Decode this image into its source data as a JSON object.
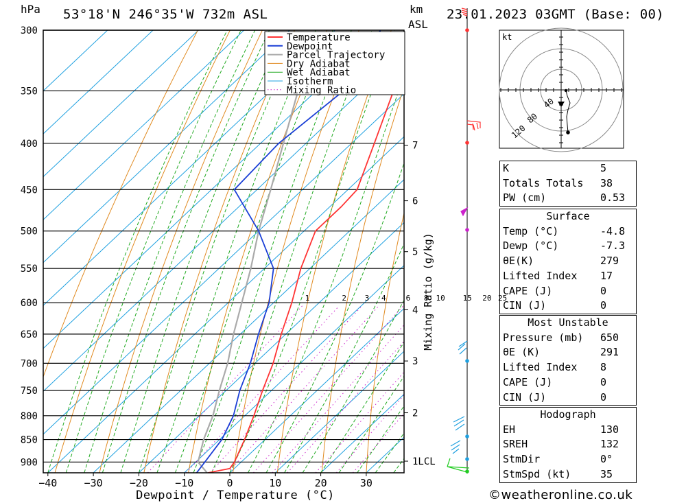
{
  "header": {
    "location": "53°18'N 246°35'W 732m ASL",
    "datetime": "23.01.2023 03GMT (Base: 00)",
    "hpa_label": "hPa",
    "km_label": "km",
    "asl_label": "ASL"
  },
  "chart_data": {
    "type": "skew-t",
    "xlabel": "Dewpoint / Temperature (°C)",
    "ylabel_right": "Mixing Ratio (g/kg)",
    "x_ticks": [
      -40,
      -30,
      -20,
      -10,
      0,
      10,
      20,
      30
    ],
    "pressure_levels": [
      300,
      350,
      400,
      450,
      500,
      550,
      600,
      650,
      700,
      750,
      800,
      850,
      900
    ],
    "height_km": [
      {
        "km": "7",
        "p": 402
      },
      {
        "km": "6",
        "p": 463
      },
      {
        "km": "5",
        "p": 527
      },
      {
        "km": "4",
        "p": 611
      },
      {
        "km": "3",
        "p": 696
      },
      {
        "km": "2",
        "p": 794
      },
      {
        "km": "1LCL",
        "p": 898
      }
    ],
    "mixing_ratio_labels": [
      "1",
      "2",
      "3",
      "4",
      "6",
      "8",
      "10",
      "15",
      "20",
      "25"
    ],
    "legend": [
      "Temperature",
      "Dewpoint",
      "Parcel Trajectory",
      "Dry Adiabat",
      "Wet Adiabat",
      "Isotherm",
      "Mixing Ratio"
    ],
    "colors": {
      "temperature": "#ff3333",
      "dewpoint": "#1a3fd6",
      "parcel": "#aaaaaa",
      "dry_adiabat": "#e08a20",
      "wet_adiabat": "#22aa22",
      "isotherm": "#1ea0e0",
      "mixing_ratio": "#cc22cc"
    },
    "temperature": [
      {
        "p": 925,
        "t": -4.8
      },
      {
        "p": 915,
        "t": -1.0
      },
      {
        "p": 900,
        "t": -1.5
      },
      {
        "p": 850,
        "t": -4.5
      },
      {
        "p": 800,
        "t": -8.0
      },
      {
        "p": 750,
        "t": -12.0
      },
      {
        "p": 700,
        "t": -16.0
      },
      {
        "p": 650,
        "t": -21.0
      },
      {
        "p": 600,
        "t": -26.0
      },
      {
        "p": 550,
        "t": -32.0
      },
      {
        "p": 500,
        "t": -37.5
      },
      {
        "p": 470,
        "t": -37.5
      },
      {
        "p": 450,
        "t": -38.0
      },
      {
        "p": 400,
        "t": -45.0
      },
      {
        "p": 350,
        "t": -53.0
      },
      {
        "p": 300,
        "t": -62.0
      }
    ],
    "dewpoint": [
      {
        "p": 925,
        "t": -7.3
      },
      {
        "p": 900,
        "t": -8.0
      },
      {
        "p": 850,
        "t": -9.5
      },
      {
        "p": 800,
        "t": -12.5
      },
      {
        "p": 750,
        "t": -17.0
      },
      {
        "p": 700,
        "t": -21.0
      },
      {
        "p": 650,
        "t": -26.0
      },
      {
        "p": 600,
        "t": -31.0
      },
      {
        "p": 550,
        "t": -38.0
      },
      {
        "p": 500,
        "t": -50.0
      },
      {
        "p": 450,
        "t": -65.0
      },
      {
        "p": 400,
        "t": -66.0
      },
      {
        "p": 350,
        "t": -64.0
      },
      {
        "p": 300,
        "t": -70.0
      }
    ],
    "parcel": [
      {
        "p": 925,
        "t": -5.0
      },
      {
        "p": 900,
        "t": -9.5
      },
      {
        "p": 850,
        "t": -13.5
      },
      {
        "p": 800,
        "t": -17.0
      },
      {
        "p": 750,
        "t": -21.5
      },
      {
        "p": 700,
        "t": -26.0
      },
      {
        "p": 650,
        "t": -31.5
      },
      {
        "p": 600,
        "t": -37.0
      },
      {
        "p": 550,
        "t": -43.0
      },
      {
        "p": 500,
        "t": -50.0
      },
      {
        "p": 450,
        "t": -57.0
      },
      {
        "p": 400,
        "t": -65.0
      },
      {
        "p": 350,
        "t": -74.0
      },
      {
        "p": 320,
        "t": -79.0
      }
    ]
  },
  "hodograph": {
    "unit": "kt",
    "ring_labels": [
      "40",
      "80",
      "120"
    ]
  },
  "indices": [
    {
      "label": "K",
      "value": "5"
    },
    {
      "label": "Totals Totals",
      "value": "38"
    },
    {
      "label": "PW (cm)",
      "value": "0.53"
    }
  ],
  "surface": {
    "title": "Surface",
    "rows": [
      {
        "label": "Temp (°C)",
        "value": "-4.8"
      },
      {
        "label": "Dewp (°C)",
        "value": "-7.3"
      },
      {
        "label": "θE(K)",
        "value": "279"
      },
      {
        "label": "Lifted Index",
        "value": "17"
      },
      {
        "label": "CAPE (J)",
        "value": "0"
      },
      {
        "label": "CIN (J)",
        "value": "0"
      }
    ]
  },
  "most_unstable": {
    "title": "Most Unstable",
    "rows": [
      {
        "label": "Pressure (mb)",
        "value": "650"
      },
      {
        "label": "θE (K)",
        "value": "291"
      },
      {
        "label": "Lifted Index",
        "value": "8"
      },
      {
        "label": "CAPE (J)",
        "value": "0"
      },
      {
        "label": "CIN (J)",
        "value": "0"
      }
    ]
  },
  "hodograph_table": {
    "title": "Hodograph",
    "rows": [
      {
        "label": "EH",
        "value": "130"
      },
      {
        "label": "SREH",
        "value": "132"
      },
      {
        "label": "StmDir",
        "value": "0°"
      },
      {
        "label": "StmSpd (kt)",
        "value": "35"
      }
    ]
  },
  "copyright": "©weatheronline.co.uk"
}
